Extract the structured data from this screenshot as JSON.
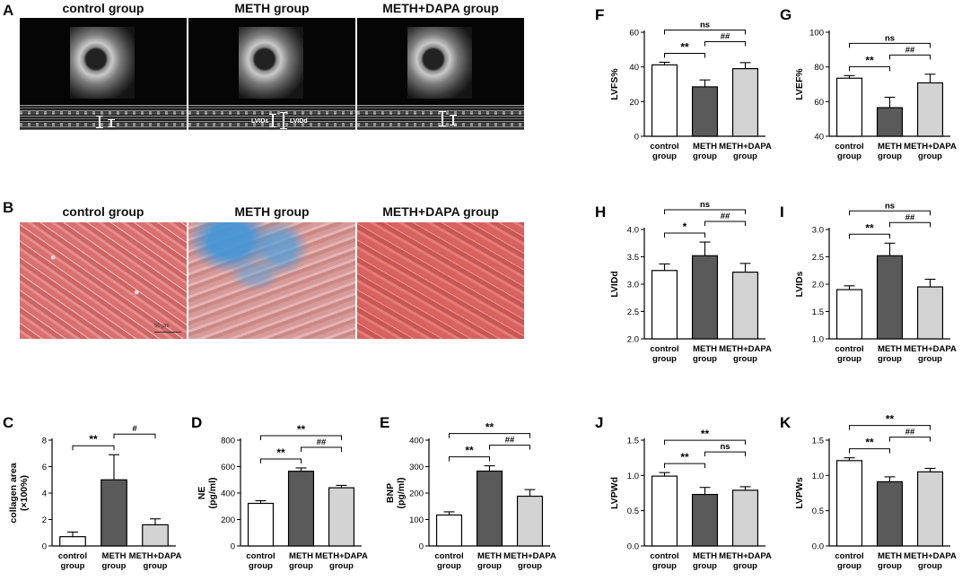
{
  "panels": {
    "A": {
      "letter": "A",
      "titles": [
        "control group",
        "METH group",
        "METH+DAPA group"
      ],
      "mmode_labels": [
        "LVIDs",
        "LVIDd"
      ]
    },
    "B": {
      "letter": "B",
      "titles": [
        "control group",
        "METH group",
        "METH+DAPA group"
      ],
      "scalebar_label": "50 μm"
    }
  },
  "colors": {
    "control": "#ffffff",
    "meth": "#5a5a5a",
    "dapa": "#d3d3d3",
    "stroke": "#000000"
  },
  "chart_data": [
    {
      "id": "C",
      "letter": "C",
      "type": "bar",
      "ylabel": "collagen area\n(×100%)",
      "ylim": [
        0,
        8
      ],
      "yticks": [
        "0",
        "2",
        "4",
        "6",
        "8"
      ],
      "ytick_values": [
        0,
        2,
        4,
        6,
        8
      ],
      "categories": [
        "control\ngroup",
        "METH\ngroup",
        "METH+DAPA\ngroup"
      ],
      "values": [
        0.7,
        5.0,
        1.6
      ],
      "errors": [
        0.35,
        1.9,
        0.45
      ],
      "brackets": [
        {
          "from": 0,
          "to": 1,
          "label": "**"
        },
        {
          "from": 1,
          "to": 2,
          "label": "#"
        }
      ]
    },
    {
      "id": "D",
      "letter": "D",
      "type": "bar",
      "ylabel": "NE\n(pg/ml)",
      "ylim": [
        0,
        800
      ],
      "yticks": [
        "0",
        "200",
        "400",
        "600",
        "800"
      ],
      "ytick_values": [
        0,
        200,
        400,
        600,
        800
      ],
      "categories": [
        "control\ngroup",
        "METH\ngroup",
        "METH+DAPA\ngroup"
      ],
      "values": [
        322,
        565,
        440
      ],
      "errors": [
        20,
        25,
        18
      ],
      "brackets": [
        {
          "from": 0,
          "to": 1,
          "label": "**"
        },
        {
          "from": 1,
          "to": 2,
          "label": "##"
        },
        {
          "from": 0,
          "to": 2,
          "label": "**"
        }
      ]
    },
    {
      "id": "E",
      "letter": "E",
      "type": "bar",
      "ylabel": "BNP\n(pg/ml)",
      "ylim": [
        0,
        400
      ],
      "yticks": [
        "0",
        "100",
        "200",
        "300",
        "400"
      ],
      "ytick_values": [
        0,
        100,
        200,
        300,
        400
      ],
      "categories": [
        "control\ngroup",
        "METH\ngroup",
        "METH+DAPA\ngroup"
      ],
      "values": [
        117,
        283,
        188
      ],
      "errors": [
        12,
        20,
        25
      ],
      "brackets": [
        {
          "from": 0,
          "to": 1,
          "label": "**"
        },
        {
          "from": 1,
          "to": 2,
          "label": "##"
        },
        {
          "from": 0,
          "to": 2,
          "label": "**"
        }
      ]
    },
    {
      "id": "F",
      "letter": "F",
      "type": "bar",
      "ylabel": "LVFS%",
      "ylim": [
        0,
        60
      ],
      "yticks": [
        "0",
        "20",
        "40",
        "60"
      ],
      "ytick_values": [
        0,
        20,
        40,
        60
      ],
      "categories": [
        "control\ngroup",
        "METH\ngroup",
        "METH+DAPA\ngroup"
      ],
      "values": [
        41.2,
        28.5,
        39.0
      ],
      "errors": [
        1.5,
        4.0,
        3.5
      ],
      "brackets": [
        {
          "from": 0,
          "to": 1,
          "label": "**"
        },
        {
          "from": 1,
          "to": 2,
          "label": "##"
        },
        {
          "from": 0,
          "to": 2,
          "label": "ns"
        }
      ]
    },
    {
      "id": "G",
      "letter": "G",
      "type": "bar",
      "ylabel": "LVEF%",
      "ylim": [
        40,
        100
      ],
      "yticks": [
        "40",
        "60",
        "80",
        "100"
      ],
      "ytick_values": [
        40,
        60,
        80,
        100
      ],
      "categories": [
        "control\ngroup",
        "METH\ngroup",
        "METH+DAPA\ngroup"
      ],
      "values": [
        73.5,
        56.5,
        70.8
      ],
      "errors": [
        1.5,
        6.0,
        5.0
      ],
      "brackets": [
        {
          "from": 0,
          "to": 1,
          "label": "**"
        },
        {
          "from": 1,
          "to": 2,
          "label": "##"
        },
        {
          "from": 0,
          "to": 2,
          "label": "ns"
        }
      ]
    },
    {
      "id": "H",
      "letter": "H",
      "type": "bar",
      "ylabel": "LVIDd",
      "ylim": [
        2.0,
        4.0
      ],
      "yticks": [
        "2.0",
        "2.5",
        "3.0",
        "3.5",
        "4.0"
      ],
      "ytick_values": [
        2.0,
        2.5,
        3.0,
        3.5,
        4.0
      ],
      "categories": [
        "control\ngroup",
        "METH\ngroup",
        "METH+DAPA\ngroup"
      ],
      "values": [
        3.25,
        3.52,
        3.22
      ],
      "errors": [
        0.12,
        0.25,
        0.16
      ],
      "brackets": [
        {
          "from": 0,
          "to": 1,
          "label": "*"
        },
        {
          "from": 1,
          "to": 2,
          "label": "##"
        },
        {
          "from": 0,
          "to": 2,
          "label": "ns"
        }
      ]
    },
    {
      "id": "I",
      "letter": "I",
      "type": "bar",
      "ylabel": "LVIDs",
      "ylim": [
        1.0,
        3.0
      ],
      "yticks": [
        "1.0",
        "1.5",
        "2.0",
        "2.5",
        "3.0"
      ],
      "ytick_values": [
        1.0,
        1.5,
        2.0,
        2.5,
        3.0
      ],
      "categories": [
        "control\ngroup",
        "METH\ngroup",
        "METH+DAPA\ngroup"
      ],
      "values": [
        1.9,
        2.52,
        1.95
      ],
      "errors": [
        0.07,
        0.23,
        0.14
      ],
      "brackets": [
        {
          "from": 0,
          "to": 1,
          "label": "**"
        },
        {
          "from": 1,
          "to": 2,
          "label": "##"
        },
        {
          "from": 0,
          "to": 2,
          "label": "ns"
        }
      ]
    },
    {
      "id": "J",
      "letter": "J",
      "type": "bar",
      "ylabel": "LVPWd",
      "ylim": [
        0.0,
        1.5
      ],
      "yticks": [
        "0.0",
        "0.5",
        "1.0",
        "1.5"
      ],
      "ytick_values": [
        0.0,
        0.5,
        1.0,
        1.5
      ],
      "categories": [
        "control\ngroup",
        "METH\ngroup",
        "METH+DAPA\ngroup"
      ],
      "values": [
        0.99,
        0.73,
        0.79
      ],
      "errors": [
        0.05,
        0.1,
        0.05
      ],
      "brackets": [
        {
          "from": 0,
          "to": 1,
          "label": "**"
        },
        {
          "from": 1,
          "to": 2,
          "label": "ns"
        },
        {
          "from": 0,
          "to": 2,
          "label": "**"
        }
      ]
    },
    {
      "id": "K",
      "letter": "K",
      "type": "bar",
      "ylabel": "LVPWs",
      "ylim": [
        0.0,
        1.5
      ],
      "yticks": [
        "0.0",
        "0.5",
        "1.0",
        "1.5"
      ],
      "ytick_values": [
        0.0,
        0.5,
        1.0,
        1.5
      ],
      "categories": [
        "control\ngroup",
        "METH\ngroup",
        "METH+DAPA\ngroup"
      ],
      "values": [
        1.21,
        0.91,
        1.05
      ],
      "errors": [
        0.04,
        0.07,
        0.05
      ],
      "brackets": [
        {
          "from": 0,
          "to": 1,
          "label": "**"
        },
        {
          "from": 1,
          "to": 2,
          "label": "##"
        },
        {
          "from": 0,
          "to": 2,
          "label": "**"
        }
      ]
    }
  ]
}
